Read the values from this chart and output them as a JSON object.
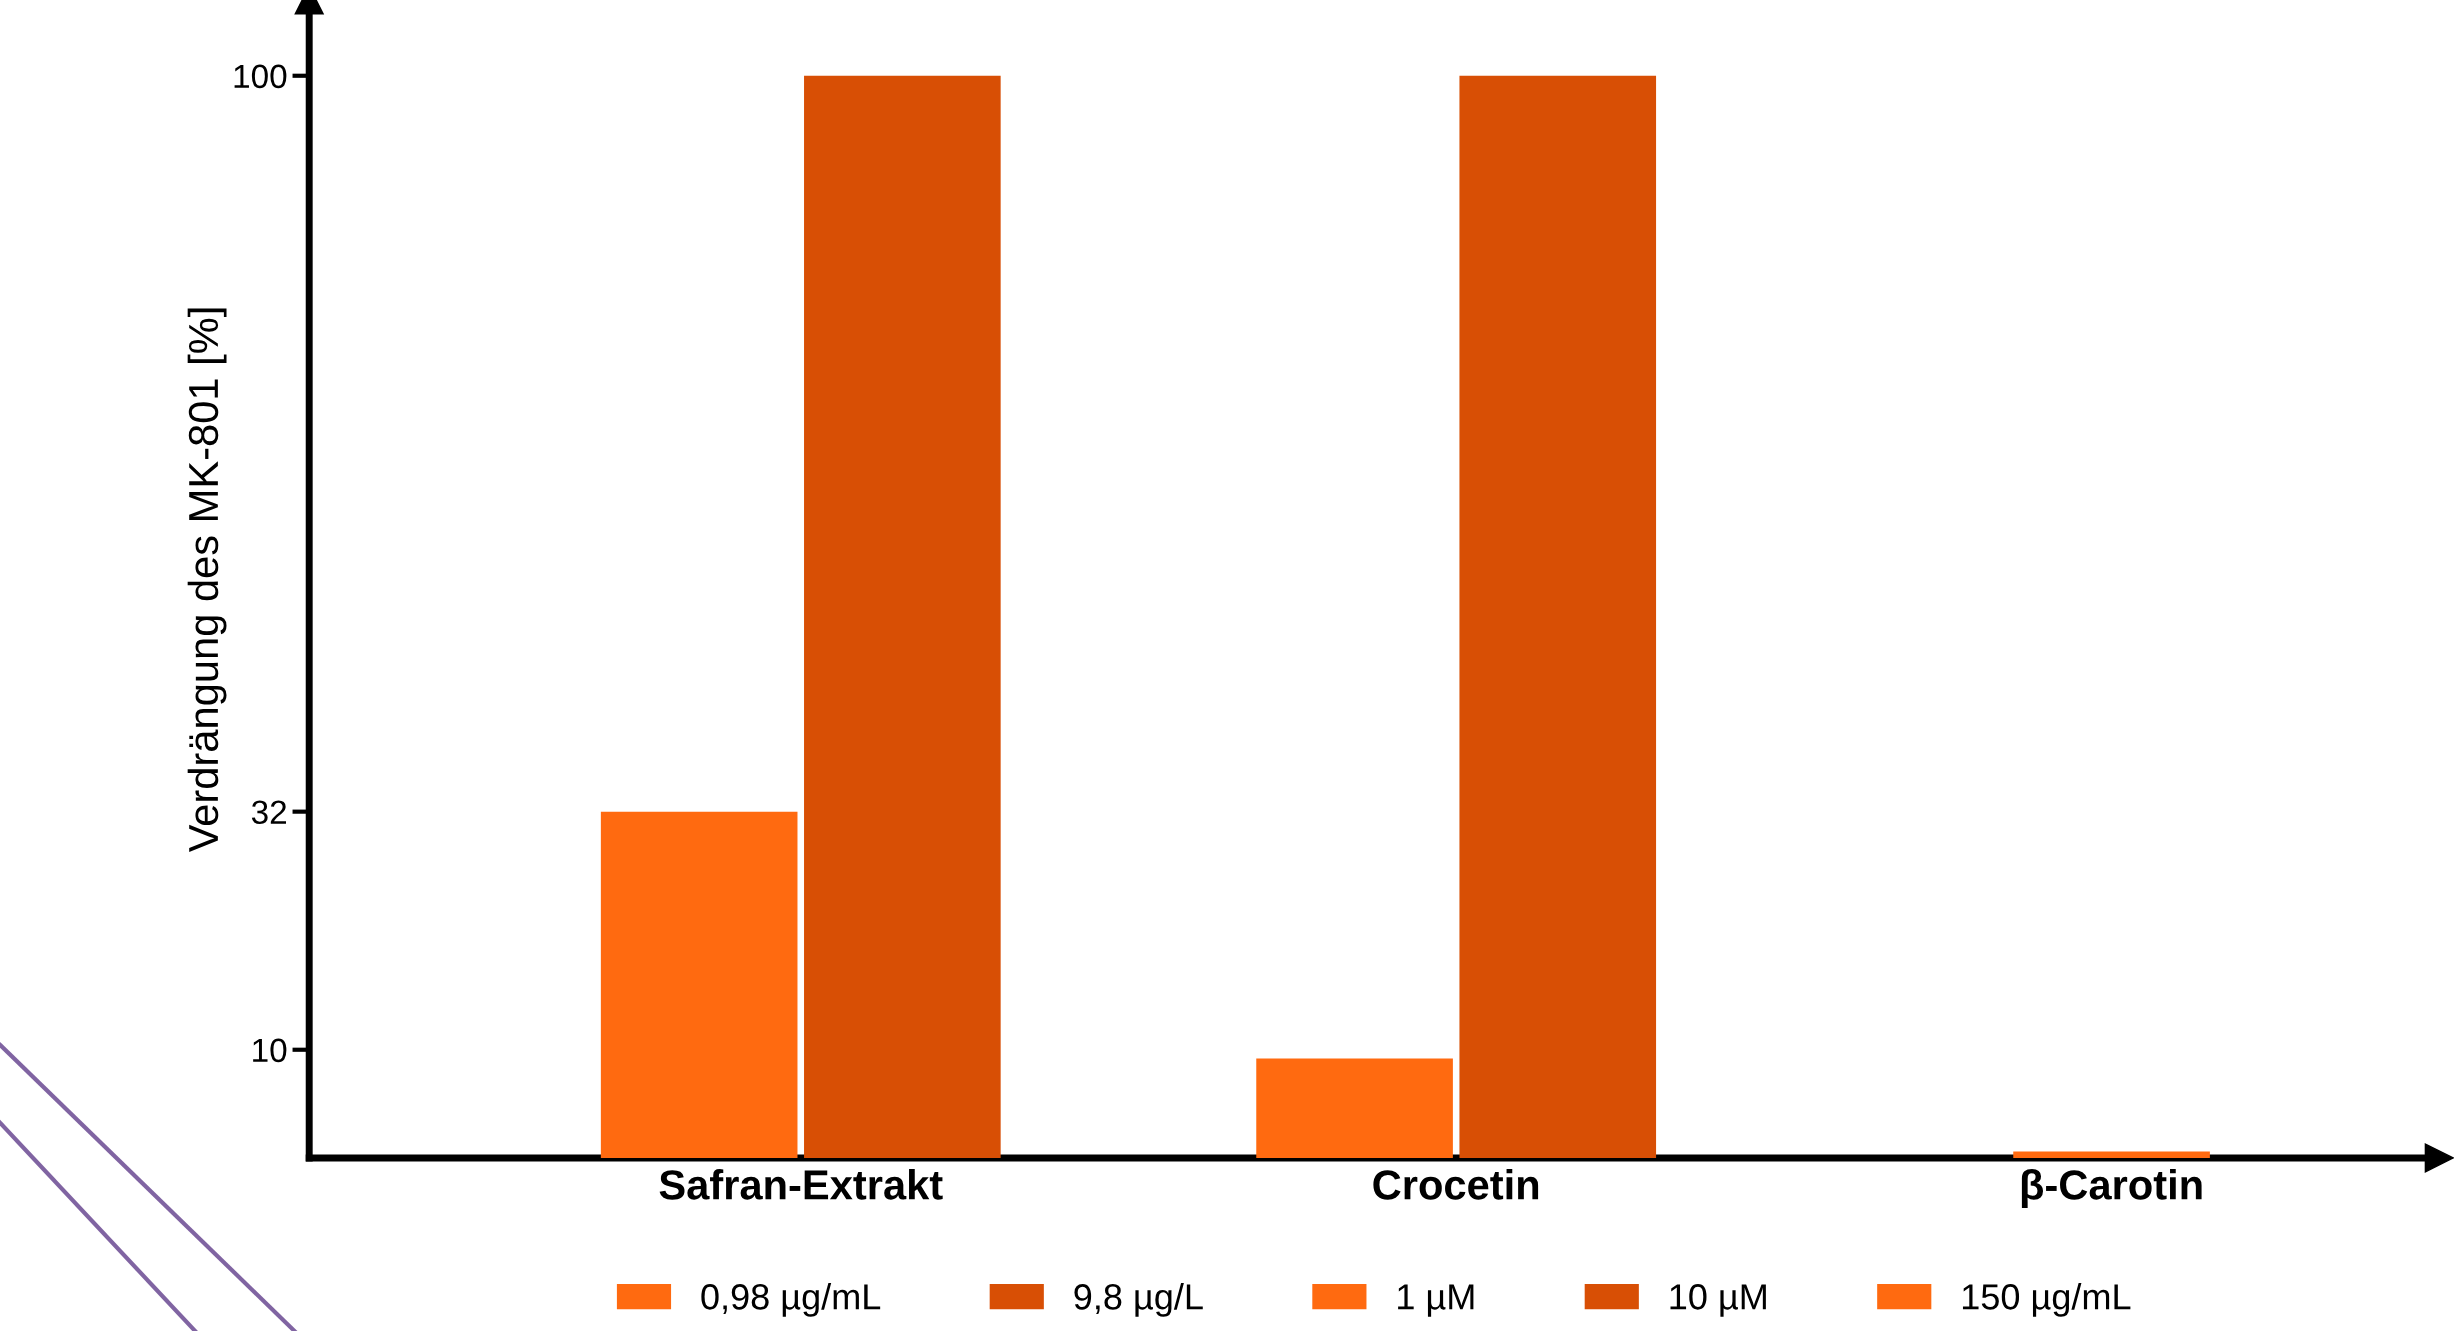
{
  "chart_data": {
    "type": "bar",
    "ylabel": "Verdrängung des MK-801 [%]",
    "categories": [
      "Safran-Extrakt",
      "Crocetin",
      "β-Carotin"
    ],
    "series": [
      {
        "name": "0,98 µg/mL",
        "color": "#ff6a10",
        "values": [
          32,
          null,
          null
        ]
      },
      {
        "name": "9,8 µg/L",
        "color": "#d84f05",
        "values": [
          100,
          null,
          null
        ]
      },
      {
        "name": "1 µM",
        "color": "#ff6a10",
        "values": [
          null,
          9.2,
          null
        ]
      },
      {
        "name": "10 µM",
        "color": "#d84f05",
        "values": [
          null,
          100,
          null
        ]
      },
      {
        "name": "150 µg/mL",
        "color": "#ff6a10",
        "values": [
          null,
          null,
          0.6
        ]
      }
    ],
    "ylim": [
      0,
      107
    ],
    "yticks": [
      10,
      32,
      100
    ],
    "grid": false,
    "legend": "bottom"
  }
}
